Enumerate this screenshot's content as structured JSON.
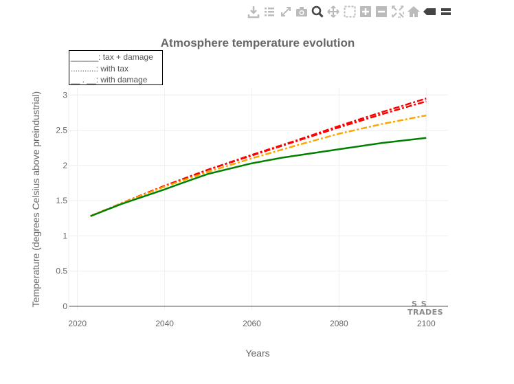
{
  "modebar": {
    "buttons": [
      {
        "name": "download-icon",
        "title": "Download plot as a png"
      },
      {
        "name": "list-icon",
        "title": "Show data"
      },
      {
        "name": "expand-icon",
        "title": "Expand"
      },
      {
        "name": "camera-icon",
        "title": "Snapshot"
      },
      {
        "name": "zoom-icon",
        "title": "Zoom"
      },
      {
        "name": "pan-icon",
        "title": "Pan"
      },
      {
        "name": "box-select-icon",
        "title": "Box Select"
      },
      {
        "name": "zoom-in-icon",
        "title": "Zoom in"
      },
      {
        "name": "zoom-out-icon",
        "title": "Zoom out"
      },
      {
        "name": "autoscale-icon",
        "title": "Autoscale"
      },
      {
        "name": "home-icon",
        "title": "Reset axes"
      },
      {
        "name": "hover-closest-icon",
        "title": "Show closest data on hover"
      },
      {
        "name": "hover-compare-icon",
        "title": "Compare data on hover"
      }
    ]
  },
  "legend": {
    "items": [
      {
        "label": "______: tax + damage"
      },
      {
        "label": "...........: with tax"
      },
      {
        "label": "__ . __: with damage"
      }
    ]
  },
  "logo": {
    "line1": "S S",
    "line2": "TRADES"
  },
  "chart_data": {
    "type": "line",
    "title": "Atmosphere temperature evolution",
    "xlabel": "Years",
    "ylabel": "Temperature (degrees Celsius above preindustrial)",
    "xlim": [
      2018,
      2105
    ],
    "ylim": [
      -0.05,
      3.1
    ],
    "xticks": [
      2020,
      2040,
      2060,
      2080,
      2100
    ],
    "yticks": [
      0,
      0.5,
      1,
      1.5,
      2,
      2.5,
      3
    ],
    "grid": true,
    "legend_position": "top-left",
    "series": [
      {
        "color": "#ff0000",
        "dash": "dashdot",
        "x": [
          2023,
          2030,
          2040,
          2050,
          2060,
          2070,
          2080,
          2090,
          2100
        ],
        "y": [
          1.28,
          1.46,
          1.71,
          1.94,
          2.15,
          2.35,
          2.56,
          2.76,
          2.95
        ]
      },
      {
        "color": "#ff0000",
        "dash": "dashdot",
        "x": [
          2023,
          2030,
          2040,
          2050,
          2060,
          2070,
          2080,
          2090,
          2100
        ],
        "y": [
          1.28,
          1.46,
          1.71,
          1.94,
          2.14,
          2.34,
          2.54,
          2.73,
          2.91
        ]
      },
      {
        "color": "#ffa500",
        "dash": "dashdot",
        "x": [
          2023,
          2030,
          2040,
          2050,
          2060,
          2070,
          2080,
          2090,
          2100
        ],
        "y": [
          1.28,
          1.46,
          1.7,
          1.91,
          2.1,
          2.28,
          2.45,
          2.59,
          2.71
        ]
      },
      {
        "color": "#008000",
        "dash": "solid",
        "x": [
          2023,
          2030,
          2040,
          2044,
          2050,
          2060,
          2067,
          2080,
          2090,
          2100
        ],
        "y": [
          1.28,
          1.45,
          1.66,
          1.75,
          1.88,
          2.03,
          2.11,
          2.23,
          2.32,
          2.39
        ]
      }
    ]
  }
}
